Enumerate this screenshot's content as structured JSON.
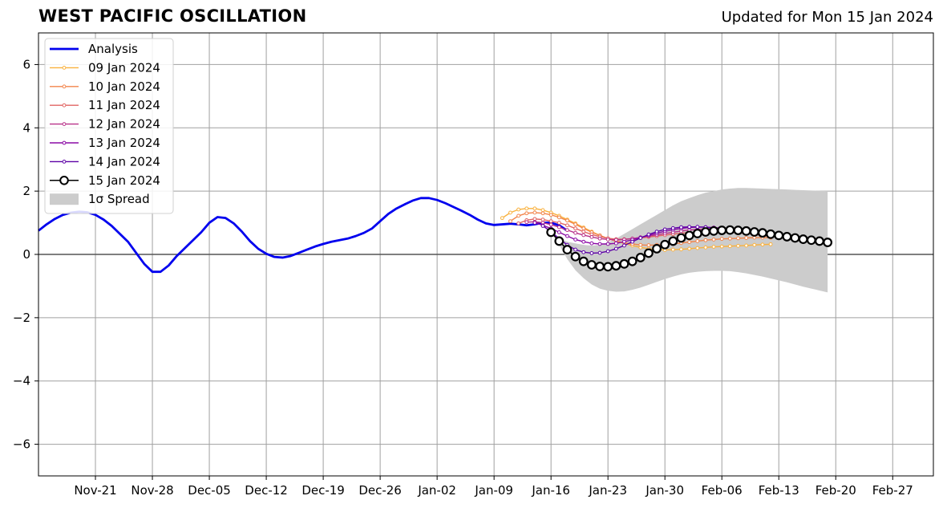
{
  "chart_data": {
    "type": "line",
    "title": "WEST PACIFIC OSCILLATION",
    "subtitle": "Updated for Mon 15 Jan 2024",
    "xlabel": "",
    "ylabel": "",
    "xlim": [
      "2023-11-14",
      "2024-03-03"
    ],
    "ylim": [
      -7,
      7
    ],
    "x_ticks": [
      "2023-11-21",
      "2023-11-28",
      "2023-12-05",
      "2023-12-12",
      "2023-12-19",
      "2023-12-26",
      "2024-01-02",
      "2024-01-09",
      "2024-01-16",
      "2024-01-23",
      "2024-01-30",
      "2024-02-06",
      "2024-02-13",
      "2024-02-20",
      "2024-02-27"
    ],
    "x_tick_labels": [
      "Nov-21",
      "Nov-28",
      "Dec-05",
      "Dec-12",
      "Dec-19",
      "Dec-26",
      "Jan-02",
      "Jan-09",
      "Jan-16",
      "Jan-23",
      "Jan-30",
      "Feb-06",
      "Feb-13",
      "Feb-20",
      "Feb-27"
    ],
    "y_ticks": [
      -6,
      -4,
      -2,
      0,
      2,
      4,
      6
    ],
    "y_tick_labels": [
      "−6",
      "−4",
      "−2",
      "0",
      "2",
      "4",
      "6"
    ],
    "grid": true,
    "legend_position": "top-left",
    "legend_entries": [
      "Analysis",
      "09 Jan 2024",
      "10 Jan 2024",
      "11 Jan 2024",
      "12 Jan 2024",
      "13 Jan 2024",
      "14 Jan 2024",
      "15 Jan 2024",
      "1σ Spread"
    ],
    "series": [
      {
        "name": "Analysis",
        "color": "#0000ee",
        "start": "2023-11-14",
        "values": [
          0.75,
          0.95,
          1.12,
          1.25,
          1.32,
          1.35,
          1.33,
          1.25,
          1.1,
          0.9,
          0.65,
          0.4,
          0.05,
          -0.3,
          -0.55,
          -0.55,
          -0.35,
          -0.05,
          0.2,
          0.45,
          0.7,
          1.0,
          1.18,
          1.15,
          0.98,
          0.72,
          0.42,
          0.18,
          0.02,
          -0.08,
          -0.1,
          -0.05,
          0.05,
          0.15,
          0.25,
          0.33,
          0.4,
          0.45,
          0.5,
          0.58,
          0.68,
          0.82,
          1.05,
          1.28,
          1.45,
          1.58,
          1.7,
          1.78,
          1.78,
          1.72,
          1.62,
          1.5,
          1.38,
          1.25,
          1.1,
          0.98,
          0.93,
          0.95,
          0.97,
          0.95,
          0.92,
          0.95,
          1.0,
          1.0,
          0.92,
          0.75
        ]
      },
      {
        "name": "09 Jan 2024",
        "color": "#f9b13d",
        "start": "2024-01-10",
        "values": [
          1.15,
          1.32,
          1.42,
          1.45,
          1.45,
          1.4,
          1.32,
          1.22,
          1.1,
          0.98,
          0.85,
          0.72,
          0.6,
          0.5,
          0.42,
          0.35,
          0.28,
          0.22,
          0.18,
          0.15,
          0.14,
          0.15,
          0.16,
          0.18,
          0.2,
          0.22,
          0.24,
          0.25,
          0.26,
          0.27,
          0.28,
          0.3,
          0.31,
          0.32
        ]
      },
      {
        "name": "10 Jan 2024",
        "color": "#f2844b",
        "start": "2024-01-11",
        "values": [
          1.05,
          1.22,
          1.3,
          1.32,
          1.3,
          1.25,
          1.17,
          1.07,
          0.95,
          0.82,
          0.7,
          0.6,
          0.5,
          0.42,
          0.37,
          0.33,
          0.3,
          0.29,
          0.3,
          0.31,
          0.33,
          0.36,
          0.39,
          0.42,
          0.45,
          0.47,
          0.49,
          0.5,
          0.51,
          0.52,
          0.53,
          0.53,
          0.53
        ]
      },
      {
        "name": "11 Jan 2024",
        "color": "#e16462",
        "start": "2024-01-12",
        "values": [
          0.98,
          1.08,
          1.12,
          1.1,
          1.05,
          1.0,
          0.92,
          0.82,
          0.72,
          0.63,
          0.56,
          0.51,
          0.48,
          0.48,
          0.5,
          0.52,
          0.55,
          0.58,
          0.61,
          0.64,
          0.67,
          0.69,
          0.7,
          0.71,
          0.71,
          0.71,
          0.7,
          0.68,
          0.66,
          0.63,
          0.6,
          0.57,
          0.55,
          0.52,
          0.5
        ]
      },
      {
        "name": "12 Jan 2024",
        "color": "#b83289",
        "start": "2024-01-13",
        "values": [
          1.02,
          1.03,
          1.0,
          0.94,
          0.86,
          0.77,
          0.68,
          0.61,
          0.55,
          0.5,
          0.47,
          0.46,
          0.47,
          0.5,
          0.54,
          0.58,
          0.62,
          0.66,
          0.7,
          0.74,
          0.77,
          0.79,
          0.8,
          0.81,
          0.8,
          0.79,
          0.77,
          0.74,
          0.71,
          0.67,
          0.64,
          0.6,
          0.56,
          0.52,
          0.48
        ]
      },
      {
        "name": "13 Jan 2024",
        "color": "#8b0aa5",
        "start": "2024-01-14",
        "values": [
          1.0,
          0.92,
          0.82,
          0.7,
          0.58,
          0.47,
          0.4,
          0.35,
          0.33,
          0.33,
          0.35,
          0.4,
          0.46,
          0.53,
          0.6,
          0.67,
          0.73,
          0.78,
          0.82,
          0.85,
          0.86,
          0.86,
          0.85,
          0.83,
          0.8
        ]
      },
      {
        "name": "14 Jan 2024",
        "color": "#5c01a6",
        "start": "2024-01-15",
        "values": [
          0.9,
          0.72,
          0.5,
          0.3,
          0.15,
          0.07,
          0.04,
          0.05,
          0.1,
          0.18,
          0.28,
          0.4,
          0.52,
          0.63,
          0.72,
          0.79,
          0.83,
          0.86,
          0.87,
          0.87,
          0.86,
          0.83
        ]
      },
      {
        "name": "15 Jan 2024",
        "color": "#000000",
        "start": "2024-01-16",
        "values": [
          0.7,
          0.42,
          0.15,
          -0.07,
          -0.22,
          -0.33,
          -0.38,
          -0.39,
          -0.36,
          -0.3,
          -0.22,
          -0.1,
          0.04,
          0.18,
          0.31,
          0.42,
          0.52,
          0.6,
          0.66,
          0.71,
          0.74,
          0.76,
          0.77,
          0.76,
          0.74,
          0.71,
          0.68,
          0.64,
          0.6,
          0.56,
          0.52,
          0.48,
          0.45,
          0.42,
          0.38
        ]
      }
    ],
    "spread": {
      "name": "1σ Spread",
      "color": "#cccccc",
      "start": "2024-01-16",
      "upper": [
        0.7,
        0.5,
        0.4,
        0.35,
        0.3,
        0.28,
        0.3,
        0.38,
        0.5,
        0.65,
        0.8,
        0.95,
        1.1,
        1.25,
        1.4,
        1.55,
        1.68,
        1.78,
        1.87,
        1.95,
        2.0,
        2.05,
        2.08,
        2.1,
        2.1,
        2.09,
        2.08,
        2.07,
        2.06,
        2.05,
        2.04,
        2.03,
        2.02,
        2.01,
        2.0
      ],
      "lower": [
        0.7,
        0.3,
        -0.15,
        -0.5,
        -0.75,
        -0.95,
        -1.08,
        -1.15,
        -1.18,
        -1.17,
        -1.12,
        -1.05,
        -0.96,
        -0.87,
        -0.78,
        -0.7,
        -0.63,
        -0.58,
        -0.55,
        -0.53,
        -0.52,
        -0.52,
        -0.53,
        -0.56,
        -0.6,
        -0.65,
        -0.7,
        -0.76,
        -0.82,
        -0.88,
        -0.95,
        -1.02,
        -1.08,
        -1.14,
        -1.2
      ]
    }
  }
}
